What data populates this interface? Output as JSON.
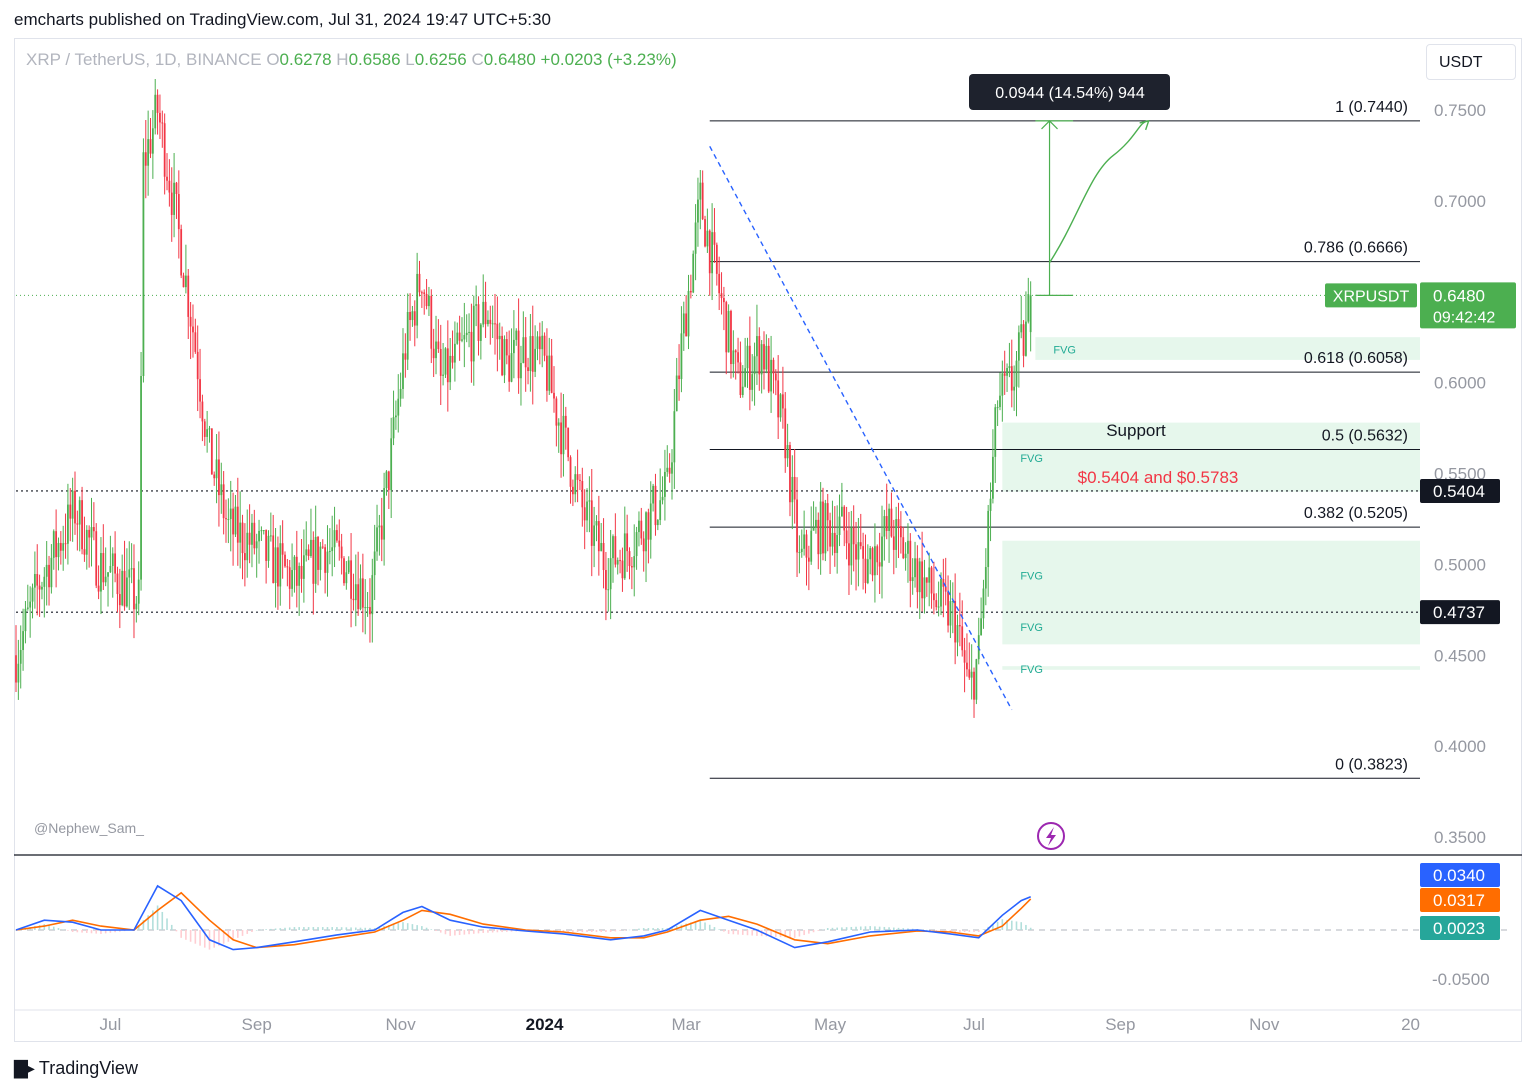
{
  "header": {
    "published": "emcharts published on TradingView.com, Jul 31, 2024 19:47 UTC+5:30"
  },
  "symbol": {
    "name": "XRP / TetherUS",
    "interval": "1D",
    "exchange": "BINANCE",
    "display": "XRP / TetherUS, 1D, BINANCE",
    "open_label": "O",
    "open": "0.6278",
    "high_label": "H",
    "high": "0.6586",
    "low_label": "L",
    "low": "0.6256",
    "close_label": "C",
    "close": "0.6480",
    "change": "+0.0203 (+3.23%)"
  },
  "currency_button": "USDT",
  "author_tag": "@Nephew_Sam_",
  "brand": "TradingView",
  "colors": {
    "up": "#4caf50",
    "down": "#f23645",
    "fvg": "#e6f7ec",
    "fib": "#131722",
    "trend": "#2962ff",
    "macd": "#2962ff",
    "signal": "#ff6d00",
    "hist_up": "#22ab94"
  },
  "chart_data": {
    "type": "candlestick",
    "title": "XRP / TetherUS, 1D, BINANCE",
    "ylim": [
      0.33,
      0.77
    ],
    "y_ticks": [
      "0.7500",
      "0.7000",
      "0.6000",
      "0.5500",
      "0.5000",
      "0.4500",
      "0.4000",
      "0.3500"
    ],
    "y_tick_values": [
      0.75,
      0.7,
      0.6,
      0.55,
      0.5,
      0.45,
      0.4,
      0.35
    ],
    "x_ticks": [
      "Jul",
      "Sep",
      "Nov",
      "2024",
      "Mar",
      "May",
      "Jul",
      "Sep",
      "Nov",
      "20"
    ],
    "x_tick_days": [
      0,
      62,
      123,
      184,
      244,
      305,
      366,
      428,
      489,
      551
    ],
    "x_range_days": [
      -40,
      555
    ],
    "price_path": [
      [
        -40,
        0.45
      ],
      [
        -30,
        0.49
      ],
      [
        -15,
        0.53
      ],
      [
        -5,
        0.5
      ],
      [
        5,
        0.49
      ],
      [
        12,
        0.48
      ],
      [
        14,
        0.72
      ],
      [
        20,
        0.75
      ],
      [
        28,
        0.69
      ],
      [
        35,
        0.63
      ],
      [
        42,
        0.56
      ],
      [
        50,
        0.52
      ],
      [
        62,
        0.51
      ],
      [
        70,
        0.5
      ],
      [
        80,
        0.49
      ],
      [
        90,
        0.51
      ],
      [
        100,
        0.5
      ],
      [
        110,
        0.48
      ],
      [
        118,
        0.55
      ],
      [
        125,
        0.62
      ],
      [
        132,
        0.66
      ],
      [
        140,
        0.6
      ],
      [
        150,
        0.62
      ],
      [
        160,
        0.64
      ],
      [
        168,
        0.61
      ],
      [
        176,
        0.62
      ],
      [
        184,
        0.61
      ],
      [
        190,
        0.58
      ],
      [
        200,
        0.53
      ],
      [
        210,
        0.5
      ],
      [
        220,
        0.51
      ],
      [
        230,
        0.53
      ],
      [
        236,
        0.54
      ],
      [
        242,
        0.62
      ],
      [
        250,
        0.7
      ],
      [
        258,
        0.65
      ],
      [
        266,
        0.6
      ],
      [
        276,
        0.62
      ],
      [
        286,
        0.57
      ],
      [
        292,
        0.5
      ],
      [
        300,
        0.52
      ],
      [
        310,
        0.52
      ],
      [
        320,
        0.5
      ],
      [
        330,
        0.52
      ],
      [
        340,
        0.5
      ],
      [
        350,
        0.48
      ],
      [
        358,
        0.47
      ],
      [
        364,
        0.43
      ],
      [
        368,
        0.45
      ],
      [
        372,
        0.52
      ],
      [
        376,
        0.59
      ],
      [
        382,
        0.6
      ],
      [
        388,
        0.6278
      ],
      [
        390,
        0.648
      ]
    ],
    "levels": {
      "current_price": 0.648,
      "support_1": 0.5404,
      "support_2": 0.4737
    },
    "fib_levels": [
      {
        "label": "1 (0.7440)",
        "value": 0.744
      },
      {
        "label": "0.786 (0.6666)",
        "value": 0.6666
      },
      {
        "label": "0.618 (0.6058)",
        "value": 0.6058
      },
      {
        "label": "0.5 (0.5632)",
        "value": 0.5632
      },
      {
        "label": "0.382 (0.5205)",
        "value": 0.5205
      },
      {
        "label": "0 (0.3823)",
        "value": 0.3823
      }
    ],
    "fvg_zones": [
      {
        "label": "FVG",
        "from": 0.6125,
        "to": 0.625
      },
      {
        "label": "FVG",
        "from": 0.54,
        "to": 0.578
      },
      {
        "label": "FVG",
        "from": 0.476,
        "to": 0.513
      },
      {
        "label": "FVG",
        "from": 0.456,
        "to": 0.476
      },
      {
        "label": "FVG",
        "from": 0.442,
        "to": 0.444
      }
    ],
    "measure_label": "0.0944 (14.54%) 944",
    "support_annotation": "Support",
    "support_range_text": "$0.5404 and $0.5783",
    "price_tags": {
      "symbol": "XRPUSDT",
      "price": "0.6480",
      "countdown": "09:42:42",
      "support_1": "0.5404",
      "support_2": "0.4737"
    },
    "macd": {
      "ylim": [
        -0.07,
        0.06
      ],
      "y_ticks": [
        "-0.0500"
      ],
      "y_tick_values": [
        -0.05
      ],
      "macd_label": "0.0340",
      "signal_label": "0.0317",
      "hist_label": "0.0023",
      "macd_path": [
        [
          -40,
          0.0
        ],
        [
          -28,
          0.01
        ],
        [
          -16,
          0.008
        ],
        [
          -4,
          0.0
        ],
        [
          10,
          0.0
        ],
        [
          20,
          0.045
        ],
        [
          30,
          0.03
        ],
        [
          42,
          -0.01
        ],
        [
          52,
          -0.02
        ],
        [
          62,
          -0.018
        ],
        [
          78,
          -0.012
        ],
        [
          96,
          -0.005
        ],
        [
          112,
          0.0
        ],
        [
          124,
          0.018
        ],
        [
          132,
          0.024
        ],
        [
          144,
          0.01
        ],
        [
          158,
          0.003
        ],
        [
          176,
          -0.001
        ],
        [
          192,
          -0.004
        ],
        [
          212,
          -0.01
        ],
        [
          226,
          -0.006
        ],
        [
          236,
          0.0
        ],
        [
          250,
          0.02
        ],
        [
          262,
          0.01
        ],
        [
          274,
          0.0
        ],
        [
          290,
          -0.018
        ],
        [
          304,
          -0.012
        ],
        [
          322,
          -0.002
        ],
        [
          342,
          0.0
        ],
        [
          356,
          -0.004
        ],
        [
          368,
          -0.008
        ],
        [
          378,
          0.015
        ],
        [
          386,
          0.03
        ],
        [
          390,
          0.034
        ]
      ],
      "signal_path": [
        [
          -40,
          0.0
        ],
        [
          -28,
          0.004
        ],
        [
          -16,
          0.01
        ],
        [
          -4,
          0.004
        ],
        [
          10,
          0.0
        ],
        [
          20,
          0.02
        ],
        [
          30,
          0.038
        ],
        [
          42,
          0.01
        ],
        [
          52,
          -0.01
        ],
        [
          62,
          -0.018
        ],
        [
          78,
          -0.015
        ],
        [
          96,
          -0.008
        ],
        [
          112,
          -0.002
        ],
        [
          124,
          0.01
        ],
        [
          132,
          0.02
        ],
        [
          144,
          0.016
        ],
        [
          158,
          0.006
        ],
        [
          176,
          0.0
        ],
        [
          192,
          -0.002
        ],
        [
          212,
          -0.008
        ],
        [
          226,
          -0.008
        ],
        [
          236,
          -0.002
        ],
        [
          250,
          0.01
        ],
        [
          262,
          0.014
        ],
        [
          274,
          0.006
        ],
        [
          290,
          -0.01
        ],
        [
          304,
          -0.014
        ],
        [
          322,
          -0.006
        ],
        [
          342,
          -0.001
        ],
        [
          356,
          -0.002
        ],
        [
          368,
          -0.006
        ],
        [
          378,
          0.004
        ],
        [
          386,
          0.022
        ],
        [
          390,
          0.0317
        ]
      ]
    }
  }
}
